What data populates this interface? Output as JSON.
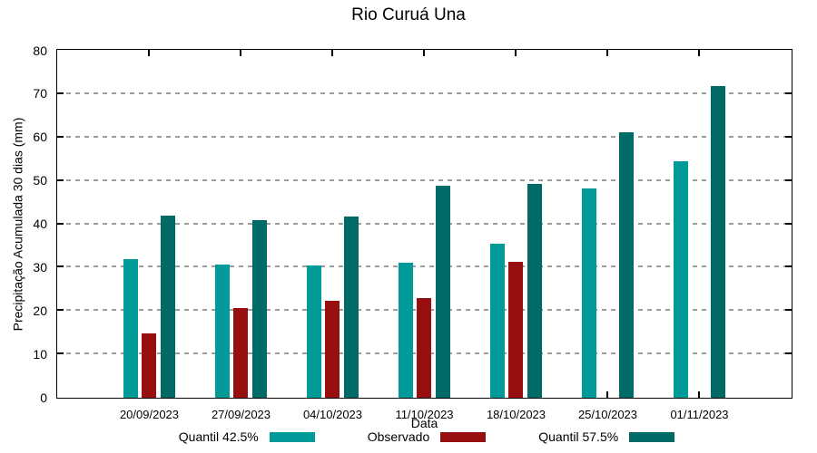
{
  "chart_data": {
    "type": "bar",
    "title": "Rio Curuá Una",
    "xlabel": "Data",
    "ylabel": "Precipitação Acumulada 30 dias (mm)",
    "ylim": [
      0,
      80
    ],
    "ytick_step": 10,
    "yticks": [
      0,
      10,
      20,
      30,
      40,
      50,
      60,
      70,
      80
    ],
    "grid": "horizontal dashed gray at each y tick",
    "legend_position": "below plot, single row",
    "frame": "full black border with inward tick marks on all four sides",
    "categories": [
      "20/09/2023",
      "27/09/2023",
      "04/10/2023",
      "11/10/2023",
      "18/10/2023",
      "25/10/2023",
      "01/11/2023"
    ],
    "series": [
      {
        "name": "Quantil 42.5%",
        "key": "quantil-42-5",
        "color": "#009B98",
        "values": [
          32.0,
          30.8,
          30.6,
          31.2,
          35.5,
          48.3,
          54.6
        ]
      },
      {
        "name": "Observado",
        "key": "observado",
        "color": "#970F0F",
        "values": [
          14.8,
          20.6,
          22.4,
          22.9,
          31.4,
          null,
          null
        ]
      },
      {
        "name": "Quantil 57.5%",
        "key": "quantil-57-5",
        "color": "#006A66",
        "values": [
          42.0,
          41.0,
          41.7,
          48.8,
          49.3,
          61.2,
          71.9
        ]
      }
    ],
    "colors": {
      "axis": "#000000",
      "grid": "#9c9c9c",
      "background": "#ffffff"
    }
  }
}
